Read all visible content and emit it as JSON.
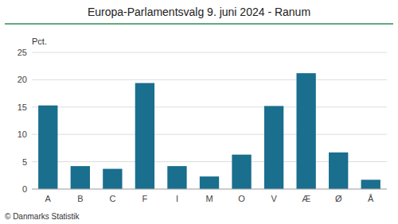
{
  "chart_data": {
    "type": "bar",
    "title": "Europa-Parlamentsvalg 9. juni 2024 - Ranum",
    "ylabel": "Pct.",
    "categories": [
      "A",
      "B",
      "C",
      "F",
      "I",
      "M",
      "O",
      "V",
      "Æ",
      "Ø",
      "Å"
    ],
    "values": [
      15.3,
      4.2,
      3.7,
      19.4,
      4.2,
      2.3,
      6.3,
      15.2,
      21.2,
      6.7,
      1.7
    ],
    "color": "#1a6e8e",
    "ylim": [
      0,
      25
    ],
    "yticks": [
      0,
      5,
      10,
      15,
      20,
      25
    ],
    "grid": true,
    "annotations": [
      "© Danmarks Statistik"
    ]
  }
}
